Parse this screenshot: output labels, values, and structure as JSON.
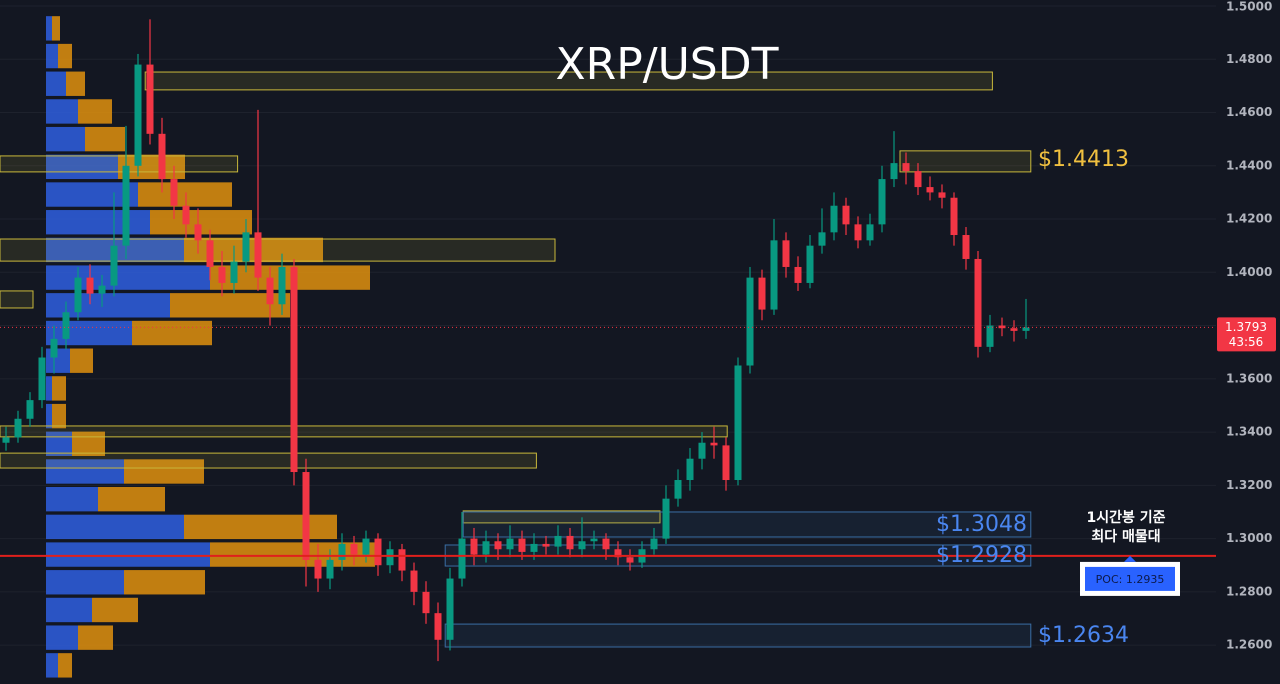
{
  "chart_data": {
    "type": "candlestick",
    "title": "XRP/USDT",
    "ylim": [
      1.2454,
      1.50225
    ],
    "yticks": [
      {
        "value": 1.5,
        "label": "1.5000"
      },
      {
        "value": 1.48,
        "label": "1.4800"
      },
      {
        "value": 1.46,
        "label": "1.4600"
      },
      {
        "value": 1.44,
        "label": "1.4400"
      },
      {
        "value": 1.42,
        "label": "1.4200"
      },
      {
        "value": 1.4,
        "label": "1.4000"
      },
      {
        "value": 1.38,
        "label": "1.3800"
      },
      {
        "value": 1.36,
        "label": "1.3600"
      },
      {
        "value": 1.34,
        "label": "1.3400"
      },
      {
        "value": 1.32,
        "label": "1.3200"
      },
      {
        "value": 1.3,
        "label": "1.3000"
      },
      {
        "value": 1.28,
        "label": "1.2800"
      },
      {
        "value": 1.26,
        "label": "1.2600"
      }
    ],
    "up_color": "#089981",
    "down_color": "#f23645",
    "candles": [
      [
        1.336,
        1.342,
        1.333,
        1.338
      ],
      [
        1.338,
        1.348,
        1.336,
        1.345
      ],
      [
        1.345,
        1.355,
        1.342,
        1.352
      ],
      [
        1.352,
        1.372,
        1.349,
        1.368
      ],
      [
        1.368,
        1.38,
        1.362,
        1.375
      ],
      [
        1.375,
        1.389,
        1.371,
        1.385
      ],
      [
        1.385,
        1.402,
        1.382,
        1.398
      ],
      [
        1.398,
        1.403,
        1.388,
        1.392
      ],
      [
        1.392,
        1.399,
        1.387,
        1.395
      ],
      [
        1.395,
        1.43,
        1.391,
        1.41
      ],
      [
        1.41,
        1.455,
        1.405,
        1.44
      ],
      [
        1.44,
        1.482,
        1.436,
        1.478
      ],
      [
        1.478,
        1.495,
        1.448,
        1.452
      ],
      [
        1.452,
        1.458,
        1.43,
        1.435
      ],
      [
        1.435,
        1.44,
        1.42,
        1.425
      ],
      [
        1.425,
        1.43,
        1.413,
        1.418
      ],
      [
        1.418,
        1.424,
        1.407,
        1.412
      ],
      [
        1.412,
        1.416,
        1.397,
        1.402
      ],
      [
        1.402,
        1.408,
        1.391,
        1.396
      ],
      [
        1.396,
        1.41,
        1.392,
        1.404
      ],
      [
        1.404,
        1.42,
        1.4,
        1.415
      ],
      [
        1.415,
        1.461,
        1.393,
        1.398
      ],
      [
        1.398,
        1.402,
        1.38,
        1.388
      ],
      [
        1.388,
        1.407,
        1.384,
        1.402
      ],
      [
        1.402,
        1.405,
        1.32,
        1.325
      ],
      [
        1.325,
        1.33,
        1.282,
        1.292
      ],
      [
        1.292,
        1.298,
        1.28,
        1.285
      ],
      [
        1.285,
        1.296,
        1.281,
        1.292
      ],
      [
        1.292,
        1.302,
        1.288,
        1.298
      ],
      [
        1.298,
        1.301,
        1.29,
        1.294
      ],
      [
        1.294,
        1.303,
        1.291,
        1.3
      ],
      [
        1.3,
        1.302,
        1.286,
        1.29
      ],
      [
        1.29,
        1.299,
        1.287,
        1.296
      ],
      [
        1.296,
        1.298,
        1.284,
        1.288
      ],
      [
        1.288,
        1.291,
        1.275,
        1.28
      ],
      [
        1.28,
        1.284,
        1.268,
        1.272
      ],
      [
        1.272,
        1.276,
        1.254,
        1.262
      ],
      [
        1.262,
        1.289,
        1.258,
        1.285
      ],
      [
        1.285,
        1.31,
        1.282,
        1.3
      ],
      [
        1.3,
        1.304,
        1.29,
        1.294
      ],
      [
        1.294,
        1.303,
        1.291,
        1.299
      ],
      [
        1.299,
        1.302,
        1.292,
        1.296
      ],
      [
        1.296,
        1.305,
        1.293,
        1.3
      ],
      [
        1.3,
        1.303,
        1.292,
        1.295
      ],
      [
        1.295,
        1.302,
        1.292,
        1.298
      ],
      [
        1.298,
        1.301,
        1.294,
        1.297
      ],
      [
        1.297,
        1.305,
        1.294,
        1.301
      ],
      [
        1.301,
        1.304,
        1.293,
        1.296
      ],
      [
        1.296,
        1.308,
        1.293,
        1.299
      ],
      [
        1.299,
        1.303,
        1.296,
        1.3
      ],
      [
        1.3,
        1.302,
        1.292,
        1.296
      ],
      [
        1.296,
        1.299,
        1.29,
        1.293
      ],
      [
        1.293,
        1.296,
        1.288,
        1.291
      ],
      [
        1.291,
        1.299,
        1.289,
        1.296
      ],
      [
        1.296,
        1.304,
        1.294,
        1.3
      ],
      [
        1.3,
        1.32,
        1.298,
        1.315
      ],
      [
        1.315,
        1.326,
        1.312,
        1.322
      ],
      [
        1.322,
        1.334,
        1.318,
        1.33
      ],
      [
        1.33,
        1.34,
        1.326,
        1.336
      ],
      [
        1.336,
        1.342,
        1.33,
        1.335
      ],
      [
        1.335,
        1.338,
        1.318,
        1.322
      ],
      [
        1.322,
        1.368,
        1.32,
        1.365
      ],
      [
        1.365,
        1.402,
        1.362,
        1.398
      ],
      [
        1.398,
        1.401,
        1.382,
        1.386
      ],
      [
        1.386,
        1.42,
        1.384,
        1.412
      ],
      [
        1.412,
        1.415,
        1.398,
        1.402
      ],
      [
        1.402,
        1.406,
        1.393,
        1.396
      ],
      [
        1.396,
        1.414,
        1.394,
        1.41
      ],
      [
        1.41,
        1.424,
        1.407,
        1.415
      ],
      [
        1.415,
        1.43,
        1.412,
        1.425
      ],
      [
        1.425,
        1.428,
        1.414,
        1.418
      ],
      [
        1.418,
        1.421,
        1.409,
        1.412
      ],
      [
        1.412,
        1.422,
        1.41,
        1.418
      ],
      [
        1.418,
        1.44,
        1.415,
        1.435
      ],
      [
        1.435,
        1.453,
        1.432,
        1.441
      ],
      [
        1.441,
        1.445,
        1.433,
        1.438
      ],
      [
        1.438,
        1.441,
        1.429,
        1.432
      ],
      [
        1.432,
        1.436,
        1.427,
        1.43
      ],
      [
        1.43,
        1.433,
        1.424,
        1.428
      ],
      [
        1.428,
        1.43,
        1.41,
        1.414
      ],
      [
        1.414,
        1.417,
        1.401,
        1.405
      ],
      [
        1.405,
        1.408,
        1.368,
        1.372
      ],
      [
        1.372,
        1.384,
        1.37,
        1.38
      ],
      [
        1.38,
        1.383,
        1.376,
        1.379
      ],
      [
        1.379,
        1.382,
        1.374,
        1.378
      ],
      [
        1.378,
        1.39,
        1.375,
        1.3793
      ]
    ],
    "volume_profile": {
      "buy_color": "#2f5fe0",
      "sell_color": "#e0900e",
      "levels": [
        1.4916,
        1.4812,
        1.4708,
        1.4604,
        1.45,
        1.4396,
        1.4292,
        1.4188,
        1.4084,
        1.398,
        1.3876,
        1.3772,
        1.3668,
        1.3564,
        1.346,
        1.3356,
        1.3252,
        1.3148,
        1.3044,
        1.294,
        1.2836,
        1.2732,
        1.2628,
        1.2524
      ],
      "buy": [
        6,
        12,
        20,
        32,
        39,
        72,
        92,
        104,
        138,
        164,
        124,
        86,
        24,
        6,
        6,
        26,
        78,
        52,
        138,
        164,
        78,
        46,
        32,
        12
      ],
      "sell": [
        8,
        14,
        19,
        34,
        40,
        67,
        94,
        102,
        139,
        160,
        120,
        80,
        23,
        14,
        14,
        33,
        80,
        67,
        153,
        165,
        81,
        46,
        35,
        14
      ]
    },
    "zones": [
      {
        "top": 1.4752,
        "bottom": 1.4685,
        "from": 11.6,
        "to": 82.2,
        "color": "#c9b83b"
      },
      {
        "top": 1.4437,
        "bottom": 1.4377,
        "from": -0.5,
        "to": 19.3,
        "color": "#c9b83b"
      },
      {
        "top": 1.4456,
        "bottom": 1.4377,
        "from": 74.5,
        "to": 85.4,
        "color": "#c9b83b"
      },
      {
        "top": 1.4125,
        "bottom": 1.4042,
        "from": -0.5,
        "to": 45.75,
        "color": "#c9b83b"
      },
      {
        "top": 1.393,
        "bottom": 1.3866,
        "from": -0.5,
        "to": 2.25,
        "color": "#c9b83b"
      },
      {
        "top": 1.3423,
        "bottom": 1.3382,
        "from": -0.5,
        "to": 60.1,
        "color": "#c9b83b"
      },
      {
        "top": 1.3321,
        "bottom": 1.3265,
        "from": -0.5,
        "to": 44.2,
        "color": "#c9b83b"
      },
      {
        "top": 1.3104,
        "bottom": 1.3059,
        "from": 38.1,
        "to": 54.5,
        "color": "#c9b83b"
      },
      {
        "top": 1.31,
        "bottom": 1.3006,
        "from": 38.1,
        "to": 85.4,
        "color": "#3a6ea5"
      },
      {
        "top": 1.2976,
        "bottom": 1.2897,
        "from": 36.6,
        "to": 85.4,
        "color": "#3a6ea5"
      },
      {
        "top": 1.2679,
        "bottom": 1.2593,
        "from": 36.6,
        "to": 85.4,
        "color": "#3a6ea5"
      }
    ],
    "price_labels": [
      {
        "text": "$1.4413",
        "color": "#f0c040"
      },
      {
        "text": "$1.3048",
        "color": "#4a86f0"
      },
      {
        "text": "$1.2928",
        "color": "#4a86f0"
      },
      {
        "text": "$1.2634",
        "color": "#4a86f0"
      }
    ],
    "poc": {
      "value": 1.2935,
      "label": "POC: 1.2935",
      "color": "#e0201c"
    },
    "poc_note": [
      "1시간봉 기준",
      "최다 매물대"
    ],
    "current_price": 1.3793,
    "countdown": "43:56"
  }
}
